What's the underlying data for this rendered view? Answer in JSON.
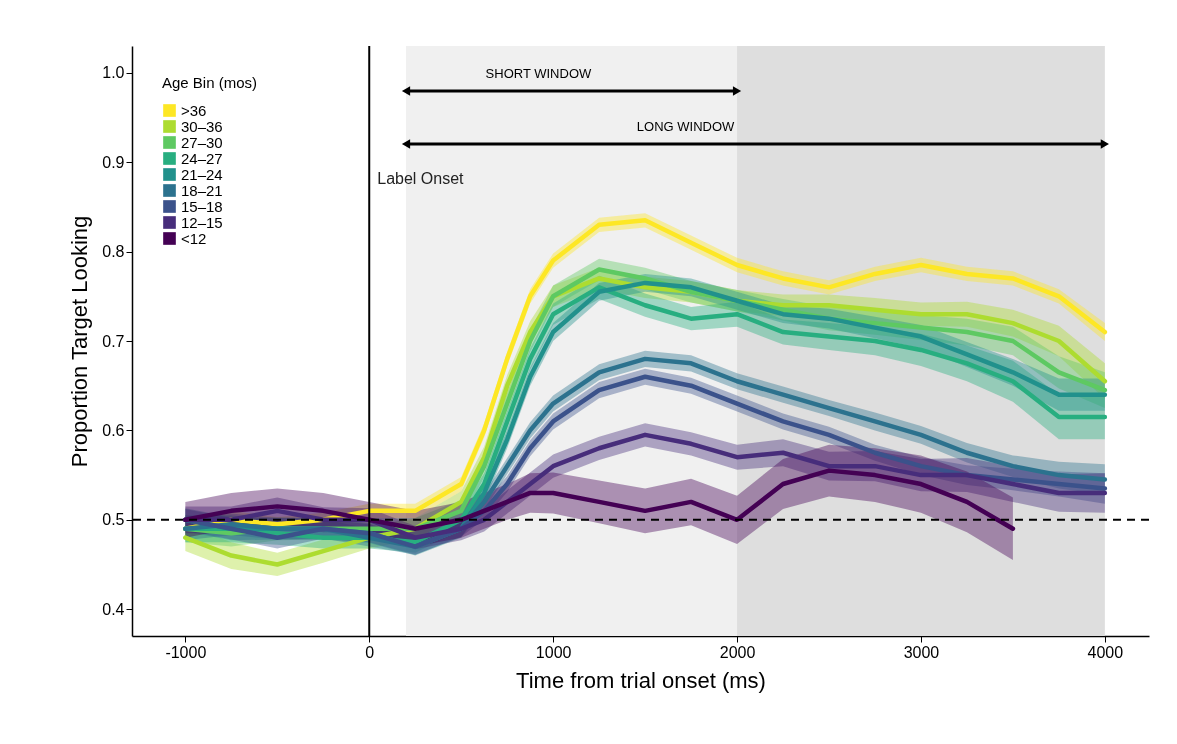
{
  "chart_data": {
    "type": "line",
    "xlabel": "Time from trial onset (ms)",
    "ylabel": "Proportion Target Looking",
    "legend_title": "Age Bin (mos)",
    "legend": "top left",
    "grid": false,
    "xlim": [
      -1290,
      4240
    ],
    "ylim": [
      0.37,
      1.03
    ],
    "xticks": [
      -1000,
      0,
      1000,
      2000,
      3000,
      4000
    ],
    "yticks": [
      {
        "value": 0.4,
        "label": "0.4"
      },
      {
        "value": 0.5,
        "label": "0.5"
      },
      {
        "value": 0.6,
        "label": "0.6"
      },
      {
        "value": 0.7,
        "label": "0.7"
      },
      {
        "value": 0.8,
        "label": "0.8"
      },
      {
        "value": 0.9,
        "label": "0.9"
      },
      {
        "value": 1,
        "label": "1.0"
      }
    ],
    "x": [
      -1000,
      -750,
      -500,
      -250,
      0,
      250,
      500,
      625,
      750,
      875,
      1000,
      1250,
      1500,
      1750,
      2000,
      2250,
      2500,
      2750,
      3000,
      3250,
      3500,
      3750,
      4000
    ],
    "series": [
      {
        "name": ">36",
        "color": "#fde725",
        "values": [
          0.49,
          0.5,
          0.495,
          0.5,
          0.51,
          0.51,
          0.54,
          0.6,
          0.68,
          0.75,
          0.79,
          0.83,
          0.835,
          0.81,
          0.785,
          0.77,
          0.76,
          0.775,
          0.785,
          0.775,
          0.77,
          0.75,
          0.71
        ],
        "lower": [
          0.48,
          0.49,
          0.487,
          0.492,
          0.502,
          0.502,
          0.532,
          0.592,
          0.672,
          0.742,
          0.782,
          0.822,
          0.827,
          0.802,
          0.777,
          0.762,
          0.752,
          0.767,
          0.777,
          0.767,
          0.762,
          0.742,
          0.7
        ],
        "upper": [
          0.5,
          0.51,
          0.503,
          0.508,
          0.518,
          0.518,
          0.548,
          0.608,
          0.688,
          0.758,
          0.798,
          0.838,
          0.843,
          0.818,
          0.793,
          0.778,
          0.768,
          0.783,
          0.793,
          0.783,
          0.778,
          0.758,
          0.72
        ]
      },
      {
        "name": "30–36",
        "color": "#addc30",
        "values": [
          0.48,
          0.46,
          0.45,
          0.465,
          0.48,
          0.49,
          0.52,
          0.57,
          0.65,
          0.71,
          0.75,
          0.77,
          0.76,
          0.755,
          0.745,
          0.74,
          0.74,
          0.735,
          0.73,
          0.73,
          0.72,
          0.7,
          0.655
        ],
        "lower": [
          0.465,
          0.445,
          0.437,
          0.452,
          0.468,
          0.478,
          0.508,
          0.558,
          0.638,
          0.698,
          0.738,
          0.758,
          0.748,
          0.743,
          0.733,
          0.728,
          0.728,
          0.722,
          0.717,
          0.716,
          0.705,
          0.683,
          0.635
        ],
        "upper": [
          0.495,
          0.475,
          0.463,
          0.478,
          0.492,
          0.502,
          0.532,
          0.582,
          0.662,
          0.722,
          0.762,
          0.782,
          0.772,
          0.767,
          0.757,
          0.752,
          0.752,
          0.748,
          0.743,
          0.744,
          0.735,
          0.717,
          0.675
        ]
      },
      {
        "name": "27–30",
        "color": "#5ec962",
        "values": [
          0.49,
          0.485,
          0.49,
          0.49,
          0.49,
          0.49,
          0.51,
          0.56,
          0.63,
          0.7,
          0.75,
          0.78,
          0.77,
          0.755,
          0.745,
          0.735,
          0.725,
          0.72,
          0.715,
          0.71,
          0.7,
          0.665,
          0.645
        ],
        "lower": [
          0.475,
          0.47,
          0.477,
          0.478,
          0.478,
          0.478,
          0.498,
          0.548,
          0.618,
          0.688,
          0.738,
          0.768,
          0.758,
          0.743,
          0.733,
          0.723,
          0.712,
          0.707,
          0.701,
          0.695,
          0.684,
          0.647,
          0.625
        ],
        "upper": [
          0.505,
          0.5,
          0.503,
          0.502,
          0.502,
          0.502,
          0.522,
          0.572,
          0.642,
          0.712,
          0.762,
          0.792,
          0.782,
          0.767,
          0.757,
          0.747,
          0.738,
          0.733,
          0.729,
          0.725,
          0.716,
          0.683,
          0.665
        ]
      },
      {
        "name": "24–27",
        "color": "#28ae80",
        "values": [
          0.49,
          0.49,
          0.485,
          0.48,
          0.48,
          0.475,
          0.5,
          0.54,
          0.61,
          0.68,
          0.73,
          0.76,
          0.74,
          0.725,
          0.73,
          0.71,
          0.705,
          0.7,
          0.69,
          0.675,
          0.655,
          0.615,
          0.615
        ],
        "lower": [
          0.475,
          0.475,
          0.472,
          0.468,
          0.468,
          0.463,
          0.488,
          0.528,
          0.598,
          0.668,
          0.718,
          0.747,
          0.727,
          0.712,
          0.716,
          0.696,
          0.69,
          0.684,
          0.672,
          0.655,
          0.632,
          0.59,
          0.59
        ],
        "upper": [
          0.505,
          0.505,
          0.498,
          0.492,
          0.492,
          0.487,
          0.512,
          0.552,
          0.622,
          0.692,
          0.742,
          0.773,
          0.753,
          0.738,
          0.744,
          0.724,
          0.72,
          0.716,
          0.708,
          0.695,
          0.678,
          0.64,
          0.64
        ]
      },
      {
        "name": "21–24",
        "color": "#21918c",
        "values": [
          0.5,
          0.49,
          0.49,
          0.49,
          0.485,
          0.47,
          0.49,
          0.53,
          0.59,
          0.66,
          0.71,
          0.755,
          0.765,
          0.76,
          0.745,
          0.73,
          0.725,
          0.715,
          0.705,
          0.685,
          0.665,
          0.64,
          0.64
        ],
        "lower": [
          0.487,
          0.477,
          0.478,
          0.478,
          0.474,
          0.46,
          0.48,
          0.52,
          0.58,
          0.65,
          0.7,
          0.745,
          0.755,
          0.75,
          0.735,
          0.72,
          0.714,
          0.703,
          0.692,
          0.671,
          0.65,
          0.622,
          0.622
        ],
        "upper": [
          0.513,
          0.503,
          0.502,
          0.502,
          0.496,
          0.48,
          0.5,
          0.54,
          0.6,
          0.67,
          0.72,
          0.765,
          0.775,
          0.77,
          0.755,
          0.74,
          0.736,
          0.727,
          0.718,
          0.699,
          0.68,
          0.658,
          0.658
        ]
      },
      {
        "name": "18–21",
        "color": "#2c728e",
        "values": [
          0.49,
          0.495,
          0.49,
          0.49,
          0.48,
          0.47,
          0.49,
          0.52,
          0.56,
          0.6,
          0.63,
          0.665,
          0.68,
          0.675,
          0.655,
          0.64,
          0.625,
          0.61,
          0.595,
          0.575,
          0.56,
          0.55,
          0.545
        ],
        "lower": [
          0.477,
          0.483,
          0.478,
          0.479,
          0.47,
          0.461,
          0.481,
          0.511,
          0.551,
          0.591,
          0.621,
          0.656,
          0.671,
          0.666,
          0.646,
          0.631,
          0.616,
          0.6,
          0.585,
          0.564,
          0.548,
          0.535,
          0.528
        ],
        "upper": [
          0.503,
          0.507,
          0.502,
          0.501,
          0.49,
          0.479,
          0.499,
          0.529,
          0.569,
          0.609,
          0.639,
          0.674,
          0.689,
          0.684,
          0.664,
          0.649,
          0.634,
          0.62,
          0.605,
          0.586,
          0.572,
          0.565,
          0.562
        ]
      },
      {
        "name": "15–18",
        "color": "#3b528b",
        "values": [
          0.5,
          0.49,
          0.48,
          0.49,
          0.485,
          0.47,
          0.49,
          0.51,
          0.54,
          0.58,
          0.61,
          0.645,
          0.66,
          0.65,
          0.63,
          0.61,
          0.595,
          0.575,
          0.56,
          0.55,
          0.545,
          0.54,
          0.535
        ],
        "lower": [
          0.488,
          0.478,
          0.468,
          0.479,
          0.475,
          0.461,
          0.481,
          0.501,
          0.531,
          0.571,
          0.601,
          0.636,
          0.651,
          0.641,
          0.621,
          0.601,
          0.586,
          0.566,
          0.55,
          0.539,
          0.533,
          0.526,
          0.518
        ],
        "upper": [
          0.512,
          0.502,
          0.492,
          0.501,
          0.495,
          0.479,
          0.499,
          0.519,
          0.549,
          0.589,
          0.619,
          0.654,
          0.669,
          0.659,
          0.639,
          0.619,
          0.604,
          0.584,
          0.57,
          0.561,
          0.557,
          0.554,
          0.552
        ]
      },
      {
        "name": "12–15",
        "color": "#472d7b",
        "values": [
          0.5,
          0.5,
          0.51,
          0.5,
          0.5,
          0.48,
          0.49,
          0.5,
          0.52,
          0.54,
          0.56,
          0.58,
          0.595,
          0.585,
          0.57,
          0.575,
          0.56,
          0.56,
          0.55,
          0.55,
          0.54,
          0.53,
          0.53
        ],
        "lower": [
          0.485,
          0.485,
          0.495,
          0.486,
          0.487,
          0.467,
          0.477,
          0.487,
          0.507,
          0.527,
          0.547,
          0.567,
          0.582,
          0.572,
          0.556,
          0.56,
          0.544,
          0.543,
          0.532,
          0.531,
          0.52,
          0.509,
          0.508
        ],
        "upper": [
          0.515,
          0.515,
          0.525,
          0.514,
          0.513,
          0.493,
          0.503,
          0.513,
          0.533,
          0.553,
          0.573,
          0.593,
          0.608,
          0.598,
          0.584,
          0.59,
          0.576,
          0.577,
          0.568,
          0.569,
          0.56,
          0.551,
          0.552
        ]
      },
      {
        "name": "<12",
        "color": "#440154",
        "values": [
          0.5,
          0.51,
          0.515,
          0.51,
          0.5,
          0.49,
          0.5,
          0.51,
          0.52,
          0.53,
          0.53,
          0.52,
          0.51,
          0.52,
          0.5,
          0.54,
          0.555,
          0.55,
          0.54,
          0.52,
          0.49,
          null,
          null
        ],
        "lower": [
          0.48,
          0.49,
          0.495,
          0.49,
          0.48,
          0.47,
          0.48,
          0.49,
          0.5,
          0.508,
          0.507,
          0.496,
          0.485,
          0.494,
          0.473,
          0.512,
          0.526,
          0.52,
          0.508,
          0.486,
          0.455,
          null,
          null
        ],
        "upper": [
          0.52,
          0.53,
          0.535,
          0.53,
          0.52,
          0.51,
          0.52,
          0.53,
          0.54,
          0.552,
          0.553,
          0.544,
          0.535,
          0.546,
          0.527,
          0.568,
          0.584,
          0.58,
          0.572,
          0.554,
          0.525,
          null,
          null
        ]
      }
    ],
    "bands": [
      {
        "axis": "x",
        "from": 200,
        "to": 2000,
        "color": "#f0f0f0"
      },
      {
        "axis": "x",
        "from": 2000,
        "to": 4000,
        "color": "#dedede"
      }
    ],
    "ref_lines": [
      {
        "axis": "x",
        "value": 0,
        "label": "Label Onset",
        "line_style": "solid",
        "color": "#000000"
      },
      {
        "axis": "y",
        "value": 0.5,
        "line_style": "dashed",
        "color": "#000000"
      }
    ],
    "annotations": [
      "SHORT WINDOW",
      "LONG WINDOW"
    ]
  }
}
